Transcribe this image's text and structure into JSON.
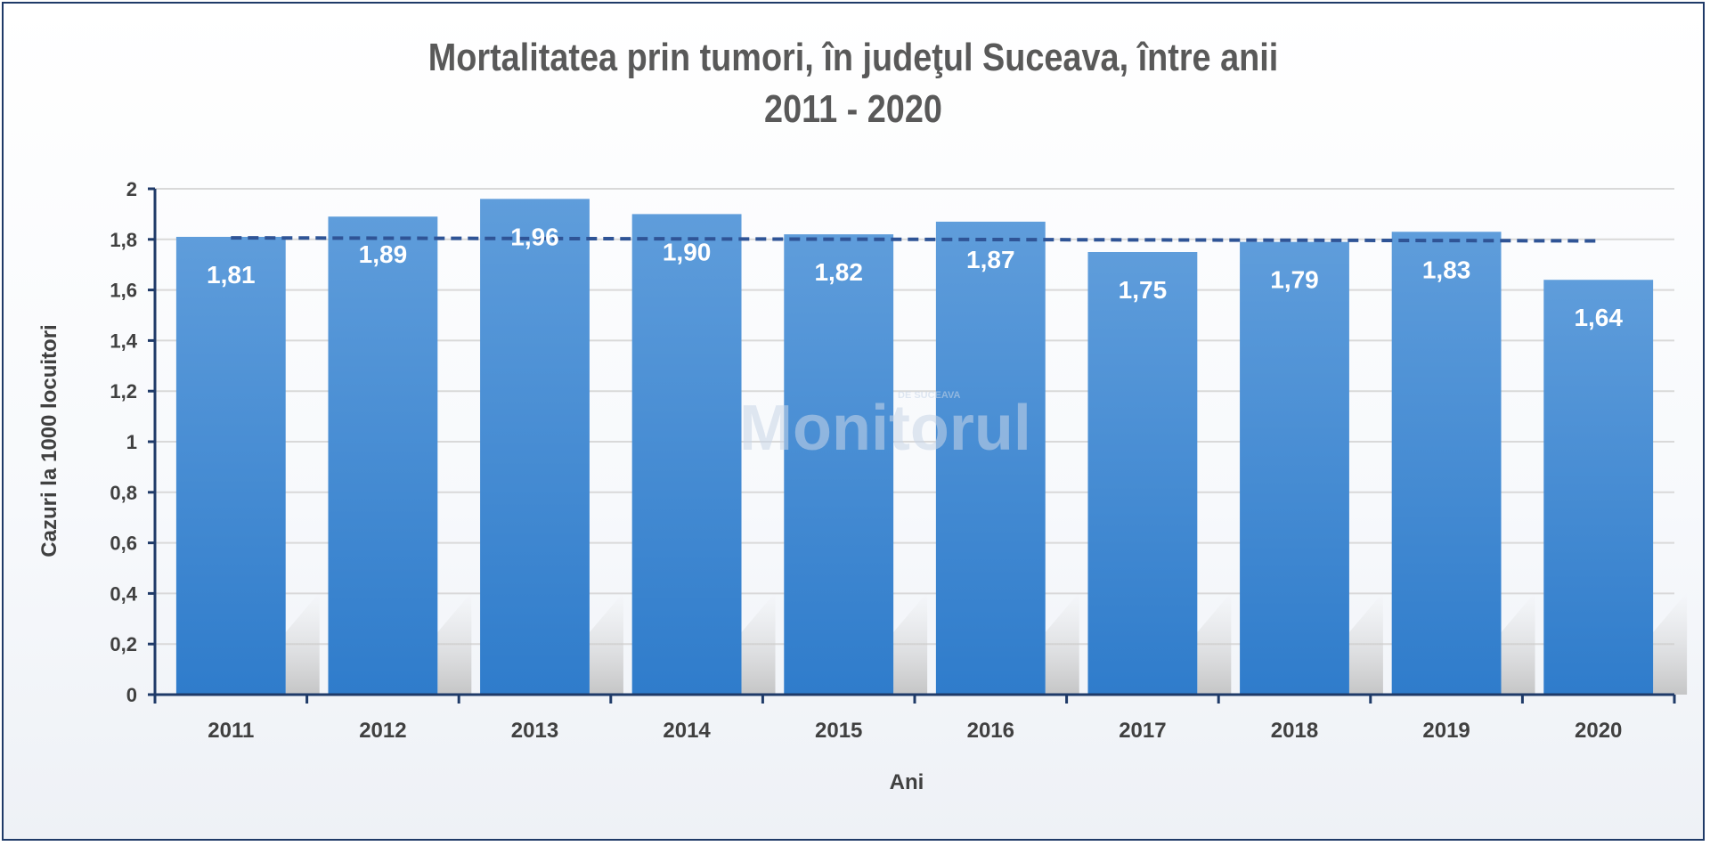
{
  "chart_data": {
    "type": "bar",
    "title": [
      "Mortalitatea prin tumori, în judeţul Suceava, între anii",
      "2011  - 2020"
    ],
    "xlabel": "Ani",
    "ylabel": "Cazuri la 1000 locuitori",
    "categories": [
      "2011",
      "2012",
      "2013",
      "2014",
      "2015",
      "2016",
      "2017",
      "2018",
      "2019",
      "2020"
    ],
    "values": [
      1.81,
      1.89,
      1.96,
      1.9,
      1.82,
      1.87,
      1.75,
      1.79,
      1.83,
      1.64
    ],
    "data_labels": [
      "1,81",
      "1,89",
      "1,96",
      "1,90",
      "1,82",
      "1,87",
      "1,75",
      "1,79",
      "1,83",
      "1,64"
    ],
    "ylim": [
      0,
      2
    ],
    "y_ticks": [
      0,
      0.2,
      0.4,
      0.6,
      0.8,
      1,
      1.2,
      1.4,
      1.6,
      1.8,
      2
    ],
    "y_tick_labels": [
      "0",
      "0,2",
      "0,4",
      "0,6",
      "0,8",
      "1",
      "1,2",
      "1,4",
      "1,6",
      "1,8",
      "2"
    ],
    "trendline": {
      "type": "linear",
      "style": "dashed",
      "color": "#2f5496",
      "start": 1.806,
      "end": 1.794
    },
    "grid": true,
    "legend": "none",
    "colors": {
      "bar_top": "#5f9ddb",
      "bar_bottom": "#2f7ccb",
      "axis": "#1f3a68",
      "grid": "#d9d9d9"
    },
    "watermark": {
      "main": "Monitorul",
      "small": "DE SUCEAVA"
    }
  }
}
